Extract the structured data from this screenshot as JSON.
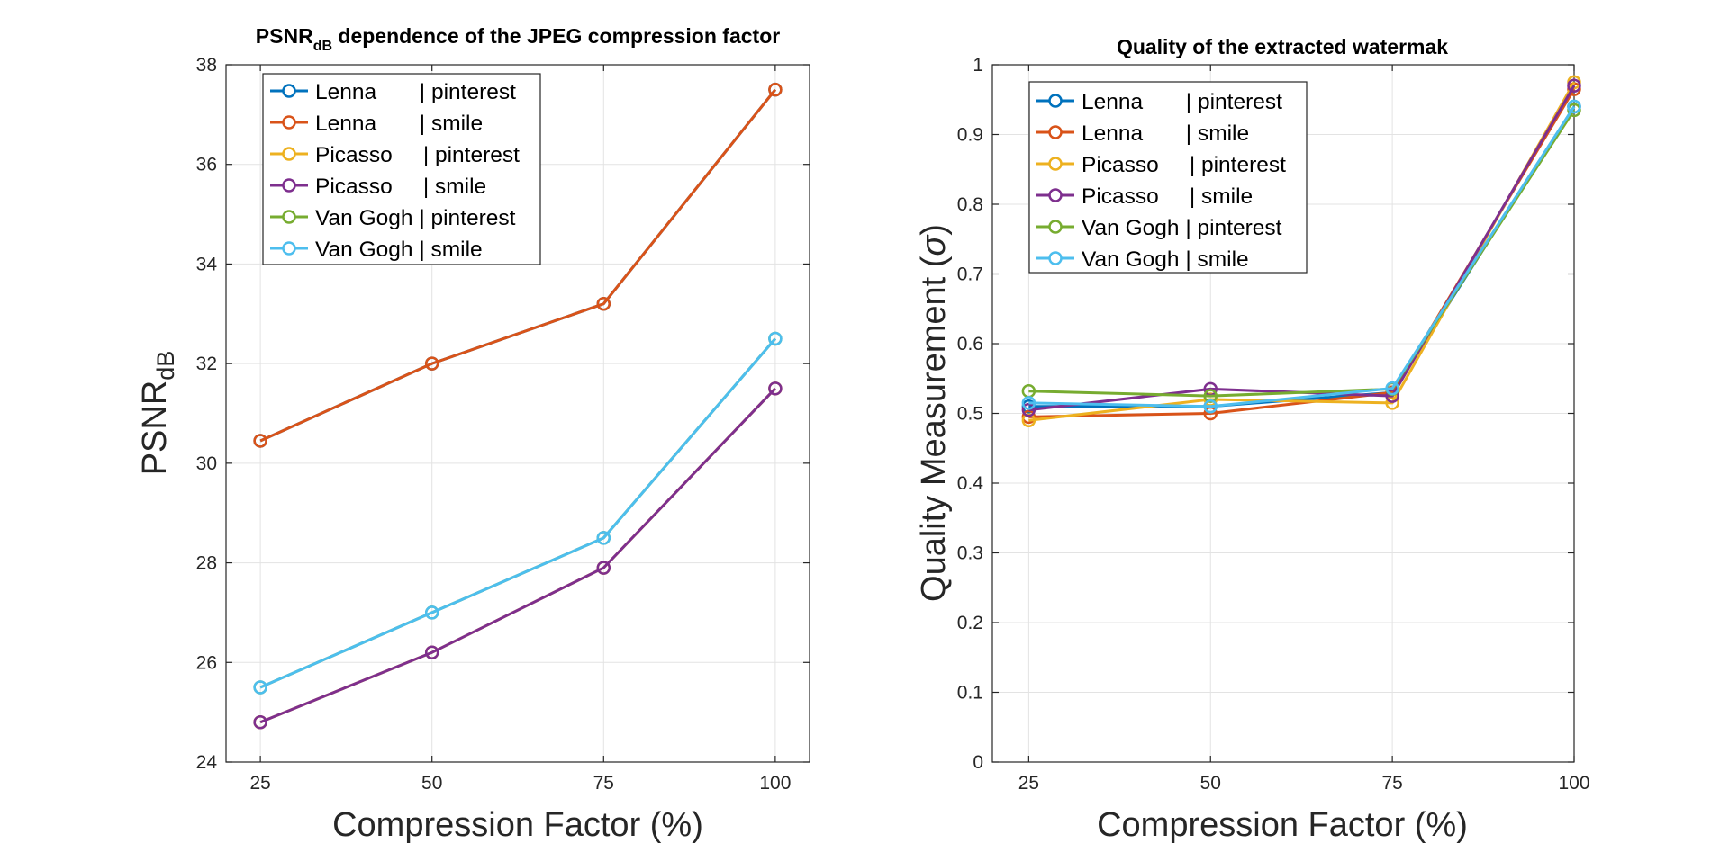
{
  "chart_data": [
    {
      "type": "line",
      "title": "PSNR",
      "title_subscript": "dB",
      "title_rest": " dependence of the JPEG compression factor",
      "xlabel": "Compression Factor (%)",
      "ylabel": "PSNR",
      "ylabel_subscript": "dB",
      "x": [
        25,
        50,
        75,
        100
      ],
      "xticklabels": [
        "25",
        "50",
        "75",
        "100"
      ],
      "xlim": [
        20,
        105
      ],
      "ylim": [
        24,
        38
      ],
      "yticks": [
        24,
        26,
        28,
        30,
        32,
        34,
        36,
        38
      ],
      "yticklabels": [
        "24",
        "26",
        "28",
        "30",
        "32",
        "34",
        "36",
        "38"
      ],
      "grid": true,
      "legend_location": "top-left",
      "series": [
        {
          "name": "Lenna       | pinterest",
          "color": "#0072BD",
          "values": [
            30.45,
            32.0,
            33.2,
            37.5
          ]
        },
        {
          "name": "Lenna       | smile",
          "color": "#D95319",
          "values": [
            30.45,
            32.0,
            33.2,
            37.5
          ]
        },
        {
          "name": "Picasso     | pinterest",
          "color": "#EDB120",
          "values": [
            24.8,
            26.2,
            27.9,
            31.5
          ]
        },
        {
          "name": "Picasso     | smile",
          "color": "#7E2F8E",
          "values": [
            24.8,
            26.2,
            27.9,
            31.5
          ]
        },
        {
          "name": "Van Gogh | pinterest",
          "color": "#77AC30",
          "values": [
            25.5,
            27.0,
            28.5,
            32.5
          ]
        },
        {
          "name": "Van Gogh | smile",
          "color": "#4DBEEE",
          "values": [
            25.5,
            27.0,
            28.5,
            32.5
          ]
        }
      ]
    },
    {
      "type": "line",
      "title": "Quality of the extracted watermak",
      "xlabel": "Compression Factor (%)",
      "ylabel": "Quality Measurement (",
      "ylabel_symbol": "σ",
      "ylabel_end": ")",
      "x": [
        25,
        50,
        75,
        100
      ],
      "xticklabels": [
        "25",
        "50",
        "75",
        "100"
      ],
      "xlim": [
        20,
        100
      ],
      "ylim": [
        0,
        1
      ],
      "yticks": [
        0,
        0.1,
        0.2,
        0.3,
        0.4,
        0.5,
        0.6,
        0.7,
        0.8,
        0.9,
        1
      ],
      "yticklabels": [
        "0",
        "0.1",
        "0.2",
        "0.3",
        "0.4",
        "0.5",
        "0.6",
        "0.7",
        "0.8",
        "0.9",
        "1"
      ],
      "grid": true,
      "legend_location": "top-left",
      "series": [
        {
          "name": "Lenna       | pinterest",
          "color": "#0072BD",
          "values": [
            0.51,
            0.51,
            0.53,
            0.94
          ]
        },
        {
          "name": "Lenna       | smile",
          "color": "#D95319",
          "values": [
            0.495,
            0.5,
            0.53,
            0.965
          ]
        },
        {
          "name": "Picasso     | pinterest",
          "color": "#EDB120",
          "values": [
            0.49,
            0.52,
            0.515,
            0.975
          ]
        },
        {
          "name": "Picasso     | smile",
          "color": "#7E2F8E",
          "values": [
            0.505,
            0.535,
            0.525,
            0.97
          ]
        },
        {
          "name": "Van Gogh | pinterest",
          "color": "#77AC30",
          "values": [
            0.532,
            0.525,
            0.535,
            0.935
          ]
        },
        {
          "name": "Van Gogh | smile",
          "color": "#4DBEEE",
          "values": [
            0.515,
            0.51,
            0.536,
            0.94
          ]
        }
      ]
    }
  ]
}
